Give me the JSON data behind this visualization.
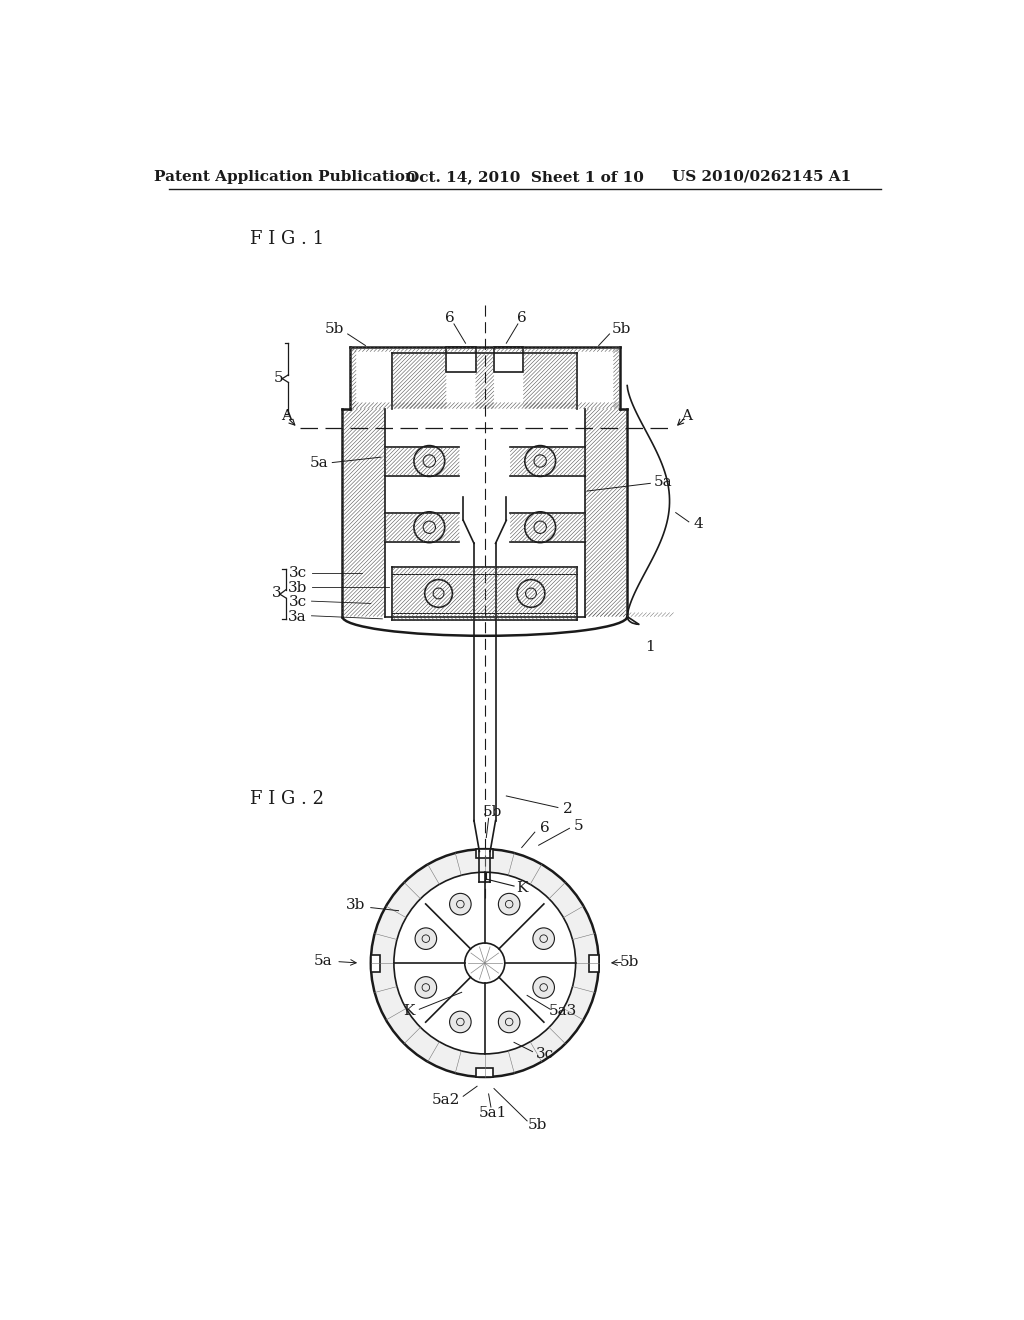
{
  "bg_color": "#ffffff",
  "line_color": "#1a1a1a",
  "hatch_color": "#555555",
  "header_left": "Patent Application Publication",
  "header_mid": "Oct. 14, 2010  Sheet 1 of 10",
  "header_right": "US 2010/0262145 A1",
  "fig1_label": "F I G . 1",
  "fig2_label": "F I G . 2",
  "font_size_header": 11,
  "font_size_label": 13,
  "font_size_ref": 11
}
